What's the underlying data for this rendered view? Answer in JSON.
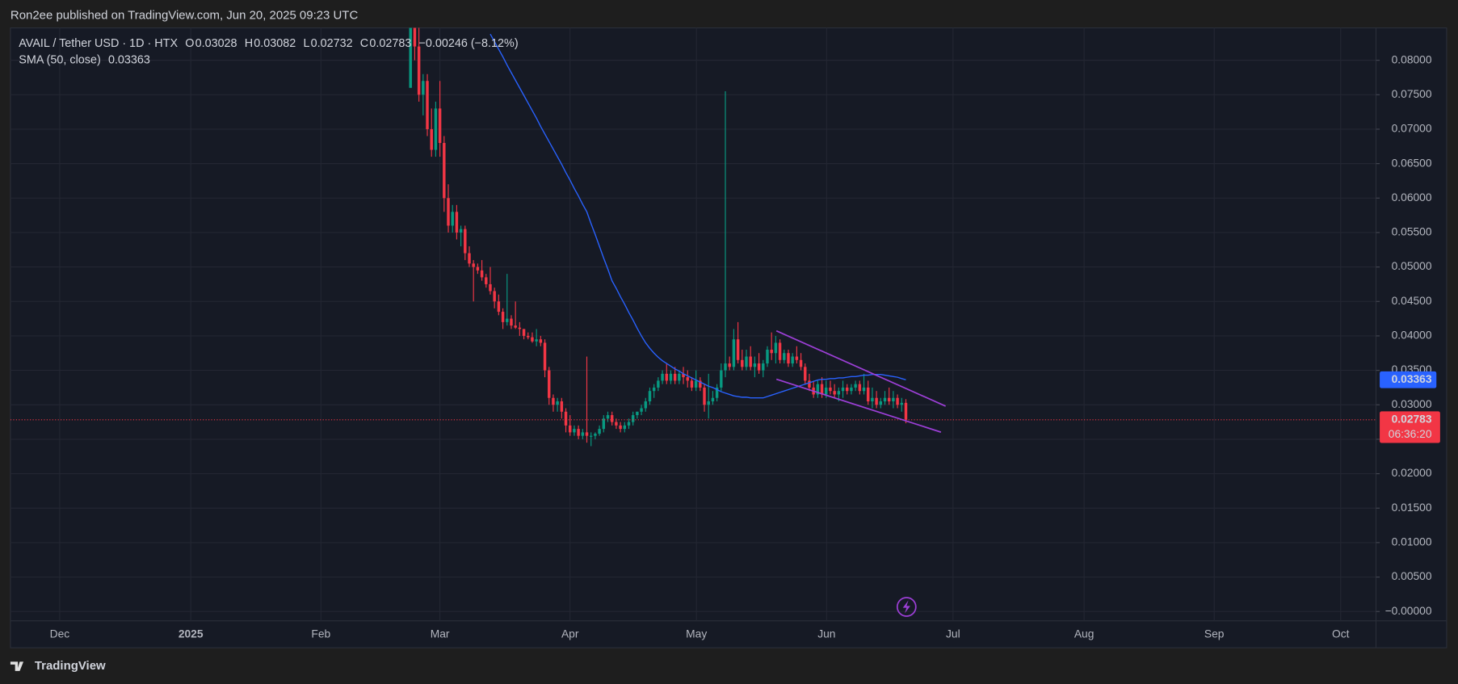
{
  "header": {
    "published": "Ron2ee published on TradingView.com, Jun 20, 2025 09:23 UTC"
  },
  "footer": {
    "brand": "TradingView"
  },
  "chart_data": {
    "type": "candlestick",
    "title": "AVAIL / Tether USD · 1D · HTX",
    "ohlc_keys": [
      "O",
      "H",
      "L",
      "C"
    ],
    "ohlc_values": [
      0.03028,
      0.03082,
      0.02732,
      0.02783
    ],
    "change": "−0.00246 (−8.12%)",
    "countdown": "06:36:20",
    "up_color": "#089981",
    "down_color": "#f23645",
    "time_labels": [
      "Dec",
      "2025",
      "Feb",
      "Mar",
      "Apr",
      "May",
      "Jun",
      "Jul",
      "Aug",
      "Sep",
      "Oct"
    ],
    "ylim": [
      -0.00526,
      0.0847
    ],
    "yticks": [
      {
        "value": 0,
        "label": "−0.00000"
      },
      {
        "value": 0.005,
        "label": "0.00500"
      },
      {
        "value": 0.01,
        "label": "0.01000"
      },
      {
        "value": 0.015,
        "label": "0.01500"
      },
      {
        "value": 0.02,
        "label": "0.02000"
      },
      {
        "value": 0.025,
        "label": "0.02500"
      },
      {
        "value": 0.03,
        "label": "0.03000"
      },
      {
        "value": 0.035,
        "label": "0.03500"
      },
      {
        "value": 0.04,
        "label": "0.04000"
      },
      {
        "value": 0.045,
        "label": "0.04500"
      },
      {
        "value": 0.05,
        "label": "0.05000"
      },
      {
        "value": 0.055,
        "label": "0.05500"
      },
      {
        "value": 0.06,
        "label": "0.06000"
      },
      {
        "value": 0.065,
        "label": "0.06500"
      },
      {
        "value": 0.07,
        "label": "0.07000"
      },
      {
        "value": 0.075,
        "label": "0.07500"
      },
      {
        "value": 0.08,
        "label": "0.08000"
      }
    ],
    "grid": true,
    "candles": [
      [
        0.076,
        0.0847,
        0.076,
        0.0847
      ],
      [
        0.0847,
        0.0847,
        0.08,
        0.082
      ],
      [
        0.082,
        0.0847,
        0.074,
        0.075
      ],
      [
        0.075,
        0.078,
        0.072,
        0.077
      ],
      [
        0.077,
        0.078,
        0.069,
        0.07
      ],
      [
        0.07,
        0.073,
        0.066,
        0.067
      ],
      [
        0.067,
        0.074,
        0.066,
        0.073
      ],
      [
        0.073,
        0.077,
        0.066,
        0.068
      ],
      [
        0.068,
        0.069,
        0.058,
        0.06
      ],
      [
        0.06,
        0.062,
        0.055,
        0.056
      ],
      [
        0.056,
        0.059,
        0.055,
        0.058
      ],
      [
        0.058,
        0.059,
        0.054,
        0.055
      ],
      [
        0.055,
        0.056,
        0.053,
        0.0555
      ],
      [
        0.0555,
        0.056,
        0.051,
        0.052
      ],
      [
        0.052,
        0.053,
        0.05,
        0.0505
      ],
      [
        0.0505,
        0.051,
        0.045,
        0.05
      ],
      [
        0.05,
        0.0505,
        0.049,
        0.0495
      ],
      [
        0.0495,
        0.051,
        0.048,
        0.0485
      ],
      [
        0.0485,
        0.049,
        0.047,
        0.0475
      ],
      [
        0.0475,
        0.05,
        0.046,
        0.0465
      ],
      [
        0.0465,
        0.047,
        0.044,
        0.045
      ],
      [
        0.045,
        0.046,
        0.043,
        0.0435
      ],
      [
        0.0435,
        0.044,
        0.041,
        0.042
      ],
      [
        0.042,
        0.049,
        0.0415,
        0.0425
      ],
      [
        0.0425,
        0.043,
        0.041,
        0.0415
      ],
      [
        0.0415,
        0.045,
        0.041,
        0.0412
      ],
      [
        0.0412,
        0.042,
        0.04,
        0.041
      ],
      [
        0.041,
        0.041,
        0.0395,
        0.04
      ],
      [
        0.04,
        0.0405,
        0.0395,
        0.0398
      ],
      [
        0.0398,
        0.0405,
        0.039,
        0.0392
      ],
      [
        0.0392,
        0.041,
        0.0385,
        0.0395
      ],
      [
        0.0395,
        0.04,
        0.0385,
        0.039
      ],
      [
        0.039,
        0.0395,
        0.034,
        0.035
      ],
      [
        0.035,
        0.0355,
        0.03,
        0.031
      ],
      [
        0.031,
        0.0315,
        0.029,
        0.03
      ],
      [
        0.03,
        0.031,
        0.029,
        0.0305
      ],
      [
        0.0305,
        0.031,
        0.028,
        0.029
      ],
      [
        0.029,
        0.0295,
        0.026,
        0.027
      ],
      [
        0.027,
        0.0285,
        0.0255,
        0.026
      ],
      [
        0.026,
        0.027,
        0.0255,
        0.0265
      ],
      [
        0.0265,
        0.027,
        0.025,
        0.0255
      ],
      [
        0.0255,
        0.0265,
        0.025,
        0.026
      ],
      [
        0.026,
        0.037,
        0.0245,
        0.0255
      ],
      [
        0.0255,
        0.026,
        0.024,
        0.0255
      ],
      [
        0.0255,
        0.026,
        0.025,
        0.0258
      ],
      [
        0.0258,
        0.027,
        0.0255,
        0.0265
      ],
      [
        0.0265,
        0.0285,
        0.026,
        0.028
      ],
      [
        0.028,
        0.029,
        0.0275,
        0.0285
      ],
      [
        0.0285,
        0.029,
        0.027,
        0.0275
      ],
      [
        0.0275,
        0.028,
        0.0265,
        0.027
      ],
      [
        0.027,
        0.0275,
        0.026,
        0.0265
      ],
      [
        0.0265,
        0.0275,
        0.026,
        0.027
      ],
      [
        0.027,
        0.028,
        0.0265,
        0.0275
      ],
      [
        0.0275,
        0.029,
        0.027,
        0.0285
      ],
      [
        0.0285,
        0.029,
        0.028,
        0.029
      ],
      [
        0.029,
        0.03,
        0.0285,
        0.0295
      ],
      [
        0.0295,
        0.031,
        0.029,
        0.0305
      ],
      [
        0.0305,
        0.0325,
        0.03,
        0.032
      ],
      [
        0.032,
        0.033,
        0.031,
        0.0325
      ],
      [
        0.0325,
        0.034,
        0.032,
        0.0335
      ],
      [
        0.0335,
        0.035,
        0.033,
        0.0345
      ],
      [
        0.0345,
        0.036,
        0.033,
        0.0335
      ],
      [
        0.0335,
        0.035,
        0.033,
        0.0345
      ],
      [
        0.0345,
        0.0355,
        0.033,
        0.0335
      ],
      [
        0.0335,
        0.035,
        0.033,
        0.0345
      ],
      [
        0.0345,
        0.0355,
        0.033,
        0.034
      ],
      [
        0.034,
        0.035,
        0.0325,
        0.0335
      ],
      [
        0.0335,
        0.034,
        0.032,
        0.0325
      ],
      [
        0.0325,
        0.035,
        0.032,
        0.0335
      ],
      [
        0.0335,
        0.034,
        0.032,
        0.0325
      ],
      [
        0.0325,
        0.033,
        0.029,
        0.03
      ],
      [
        0.03,
        0.0345,
        0.028,
        0.0305
      ],
      [
        0.0305,
        0.032,
        0.03,
        0.031
      ],
      [
        0.031,
        0.033,
        0.0305,
        0.0325
      ],
      [
        0.0325,
        0.036,
        0.032,
        0.035
      ],
      [
        0.035,
        0.0755,
        0.034,
        0.036
      ],
      [
        0.036,
        0.037,
        0.035,
        0.0355
      ],
      [
        0.0355,
        0.041,
        0.035,
        0.0395
      ],
      [
        0.0395,
        0.042,
        0.036,
        0.0365
      ],
      [
        0.0365,
        0.038,
        0.035,
        0.0355
      ],
      [
        0.0355,
        0.038,
        0.035,
        0.037
      ],
      [
        0.037,
        0.0385,
        0.035,
        0.0355
      ],
      [
        0.0355,
        0.037,
        0.034,
        0.036
      ],
      [
        0.036,
        0.0375,
        0.0345,
        0.035
      ],
      [
        0.035,
        0.0365,
        0.034,
        0.036
      ],
      [
        0.036,
        0.0385,
        0.0355,
        0.038
      ],
      [
        0.038,
        0.0405,
        0.0365,
        0.0375
      ],
      [
        0.0375,
        0.04,
        0.036,
        0.039
      ],
      [
        0.039,
        0.0395,
        0.036,
        0.0365
      ],
      [
        0.0365,
        0.038,
        0.036,
        0.0375
      ],
      [
        0.0375,
        0.038,
        0.0355,
        0.036
      ],
      [
        0.036,
        0.0375,
        0.0355,
        0.037
      ],
      [
        0.037,
        0.0385,
        0.036,
        0.0365
      ],
      [
        0.0365,
        0.0375,
        0.035,
        0.0355
      ],
      [
        0.0355,
        0.036,
        0.033,
        0.0335
      ],
      [
        0.0335,
        0.0345,
        0.032,
        0.0325
      ],
      [
        0.0325,
        0.0335,
        0.031,
        0.0315
      ],
      [
        0.0315,
        0.0335,
        0.031,
        0.033
      ],
      [
        0.033,
        0.034,
        0.031,
        0.0315
      ],
      [
        0.0315,
        0.0335,
        0.031,
        0.0325
      ],
      [
        0.0325,
        0.0335,
        0.0315,
        0.032
      ],
      [
        0.032,
        0.033,
        0.031,
        0.0315
      ],
      [
        0.0315,
        0.0325,
        0.0305,
        0.032
      ],
      [
        0.032,
        0.0335,
        0.031,
        0.0325
      ],
      [
        0.0325,
        0.033,
        0.0315,
        0.032
      ],
      [
        0.032,
        0.033,
        0.0315,
        0.0325
      ],
      [
        0.0325,
        0.0335,
        0.032,
        0.033
      ],
      [
        0.033,
        0.0335,
        0.0315,
        0.032
      ],
      [
        0.032,
        0.0345,
        0.0315,
        0.0325
      ],
      [
        0.0325,
        0.0335,
        0.03,
        0.0305
      ],
      [
        0.0305,
        0.0325,
        0.0295,
        0.031
      ],
      [
        0.031,
        0.032,
        0.0295,
        0.03
      ],
      [
        0.03,
        0.031,
        0.0295,
        0.0305
      ],
      [
        0.0305,
        0.032,
        0.03,
        0.031
      ],
      [
        0.031,
        0.0325,
        0.03,
        0.0305
      ],
      [
        0.0305,
        0.032,
        0.0295,
        0.031
      ],
      [
        0.031,
        0.0315,
        0.0295,
        0.03
      ],
      [
        0.03,
        0.031,
        0.029,
        0.03028
      ],
      [
        0.03028,
        0.03082,
        0.02732,
        0.02783
      ]
    ],
    "sma": {
      "name": "SMA (50, close)",
      "color": "#2962ff",
      "last": 0.03363,
      "values": [
        null,
        null,
        null,
        null,
        null,
        null,
        null,
        null,
        null,
        null,
        null,
        null,
        null,
        null,
        null,
        null,
        null,
        null,
        null,
        0.0838,
        0.0827,
        0.0816,
        0.0805,
        0.0793,
        0.0782,
        0.0771,
        0.076,
        0.0749,
        0.0738,
        0.0727,
        0.0716,
        0.0704,
        0.0693,
        0.0682,
        0.0671,
        0.066,
        0.0649,
        0.0637,
        0.0626,
        0.0614,
        0.0603,
        0.0591,
        0.058,
        0.0563,
        0.0547,
        0.053,
        0.0513,
        0.0497,
        0.048,
        0.0469,
        0.0457,
        0.0446,
        0.0434,
        0.0423,
        0.0411,
        0.04,
        0.039,
        0.0382,
        0.0375,
        0.0369,
        0.0364,
        0.036,
        0.0356,
        0.0352,
        0.0349,
        0.0345,
        0.0342,
        0.0339,
        0.0336,
        0.0333,
        0.033,
        0.0327,
        0.0325,
        0.0322,
        0.0319,
        0.0317,
        0.0315,
        0.0313,
        0.0312,
        0.0311,
        0.0311,
        0.031,
        0.031,
        0.031,
        0.031,
        0.0312,
        0.0314,
        0.0316,
        0.0318,
        0.032,
        0.0322,
        0.0324,
        0.0326,
        0.0328,
        0.033,
        0.0332,
        0.0334,
        0.0336,
        0.0337,
        0.0337,
        0.0338,
        0.0338,
        0.0339,
        0.0339,
        0.034,
        0.0341,
        0.0341,
        0.0342,
        0.0343,
        0.0343,
        0.0344,
        0.0344,
        0.0344,
        0.0343,
        0.0342,
        0.0341,
        0.034,
        0.0338,
        0.03363
      ]
    }
  }
}
